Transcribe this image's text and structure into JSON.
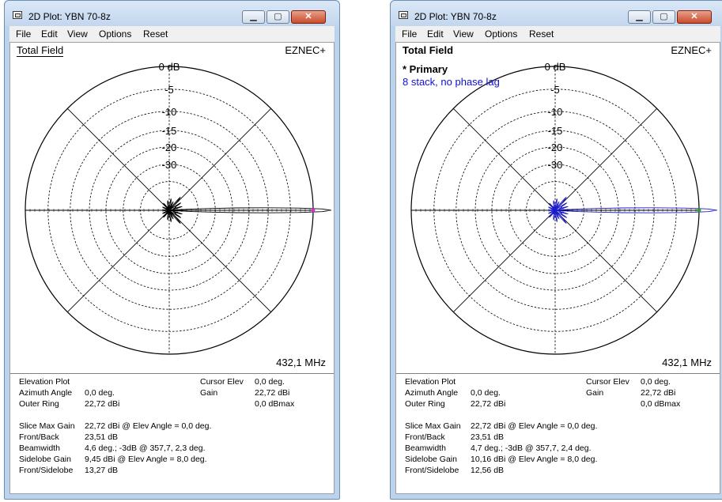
{
  "windows": [
    {
      "title": "2D Plot: YBN 70-8z",
      "menu": [
        "File",
        "Edit",
        "View",
        "Options",
        "Reset"
      ],
      "field_label": "Total Field",
      "brand": "EZNEC+",
      "frequency": "432,1 MHz",
      "primary": "",
      "description": "",
      "trace_color": "#000000",
      "ring_labels": [
        "0 dB",
        "-5",
        "-10",
        "-15",
        "-20",
        "-30"
      ],
      "info": {
        "elevation_plot": "Elevation Plot",
        "azimuth_angle_label": "Azimuth Angle",
        "azimuth_angle": "0,0 deg.",
        "outer_ring_label": "Outer Ring",
        "outer_ring": "22,72 dBi",
        "cursor_elev_label": "Cursor Elev",
        "cursor_elev": "0,0 deg.",
        "gain_label": "Gain",
        "gain": "22,72 dBi",
        "dbmax": "0,0 dBmax",
        "slice_max_gain_label": "Slice Max Gain",
        "slice_max_gain": "22,72 dBi @ Elev Angle = 0,0 deg.",
        "front_back_label": "Front/Back",
        "front_back": "23,51 dB",
        "beamwidth_label": "Beamwidth",
        "beamwidth": "4,6 deg.; -3dB @ 357,7, 2,3 deg.",
        "sidelobe_gain_label": "Sidelobe Gain",
        "sidelobe_gain": "9,45 dBi @ Elev Angle = 8,0 deg.",
        "front_sidelobe_label": "Front/Sidelobe",
        "front_sidelobe": "13,27 dB"
      }
    },
    {
      "title": "2D Plot: YBN 70-8z",
      "menu": [
        "File",
        "Edit",
        "View",
        "Options",
        "Reset"
      ],
      "field_label": "Total Field",
      "brand": "EZNEC+",
      "frequency": "432,1 MHz",
      "primary": "* Primary",
      "description": "8 stack, no phase lag",
      "trace_color": "#1a1acc",
      "ring_labels": [
        "0 dB",
        "-5",
        "-10",
        "-15",
        "-20",
        "-30"
      ],
      "info": {
        "elevation_plot": "Elevation Plot",
        "azimuth_angle_label": "Azimuth Angle",
        "azimuth_angle": "0,0 deg.",
        "outer_ring_label": "Outer Ring",
        "outer_ring": "22,72 dBi",
        "cursor_elev_label": "Cursor Elev",
        "cursor_elev": "0,0 deg.",
        "gain_label": "Gain",
        "gain": "22,72 dBi",
        "dbmax": "0,0 dBmax",
        "slice_max_gain_label": "Slice Max Gain",
        "slice_max_gain": "22,72 dBi @ Elev Angle = 0,0 deg.",
        "front_back_label": "Front/Back",
        "front_back": "23,51 dB",
        "beamwidth_label": "Beamwidth",
        "beamwidth": "4,7 deg.; -3dB @ 357,7, 2,4 deg.",
        "sidelobe_gain_label": "Sidelobe Gain",
        "sidelobe_gain": "10,16 dBi @ Elev Angle = 8,0 deg.",
        "front_sidelobe_label": "Front/Sidelobe",
        "front_sidelobe": "12,56 dB"
      }
    }
  ],
  "icons": {
    "window": "window-icon",
    "minimize": "minimize-icon",
    "maximize": "maximize-icon",
    "close": "close-icon"
  }
}
